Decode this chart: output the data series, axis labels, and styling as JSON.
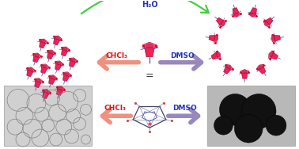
{
  "bg_color": "#ffffff",
  "h2o_label": "H₂O",
  "chcl3_label": "CHCl₃",
  "dmso_label": "DMSO",
  "arrow_green_color": "#44cc44",
  "arrow_chcl3_color": "#f09080",
  "arrow_dmso_color": "#9988bb",
  "chcl3_text_color": "#dd1111",
  "dmso_text_color": "#2233bb",
  "h2o_text_color": "#2233bb",
  "pillar_body_color": "#ee2255",
  "pillar_top_color": "#ff5577",
  "pillar_mid_color": "#cc1144",
  "pillar_hex_color": "#dd3366",
  "pillar_dark_color": "#aa0033",
  "chain_color": "#5555aa",
  "dot_color": "#dd0022",
  "equals_color": "#333333",
  "panel_left_bg": "#d0d0d0",
  "panel_right_bg": "#b8b8b8",
  "vesicle_color": "#888888",
  "blob_color": "#111111"
}
